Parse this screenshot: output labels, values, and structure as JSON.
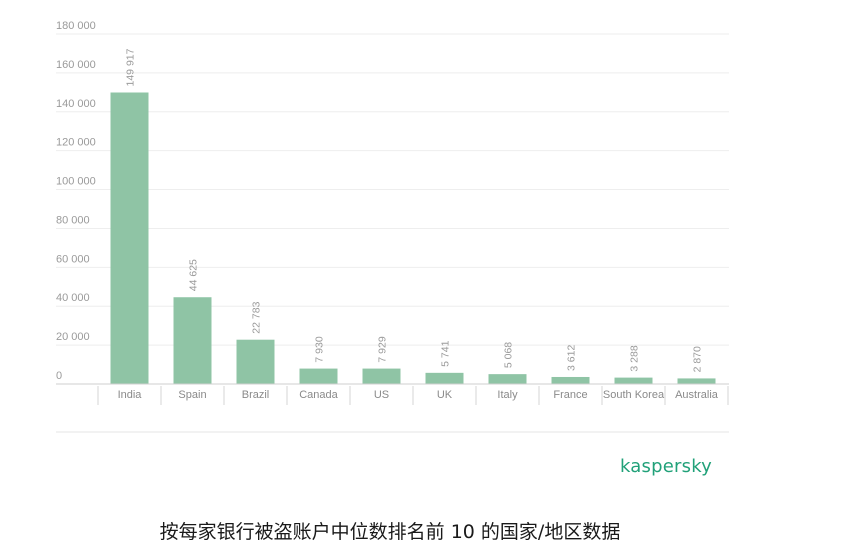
{
  "brand": {
    "logo_text": "kaspersky",
    "color": "#21a179"
  },
  "caption": "按每家银行被盗账户中位数排名前 10 的国家/地区数据",
  "chart_data": {
    "type": "bar",
    "categories": [
      "India",
      "Spain",
      "Brazil",
      "Canada",
      "US",
      "UK",
      "Italy",
      "France",
      "South Korea",
      "Australia"
    ],
    "values": [
      149917,
      44625,
      22783,
      7930,
      7929,
      5741,
      5068,
      3612,
      3288,
      2870
    ],
    "value_labels": [
      "149 917",
      "44 625",
      "22 783",
      "7 930",
      "7 929",
      "5 741",
      "5 068",
      "3 612",
      "3 288",
      "2 870"
    ],
    "ylim": [
      0,
      180000
    ],
    "yticks": [
      0,
      20000,
      40000,
      60000,
      80000,
      100000,
      120000,
      140000,
      160000,
      180000
    ],
    "ytick_labels": [
      "0",
      "20 000",
      "40 000",
      "60 000",
      "80 000",
      "100 000",
      "120 000",
      "140 000",
      "160 000",
      "180 000"
    ],
    "grid": true,
    "bar_color": "#8fc4a5",
    "title": "",
    "xlabel": "",
    "ylabel": ""
  }
}
